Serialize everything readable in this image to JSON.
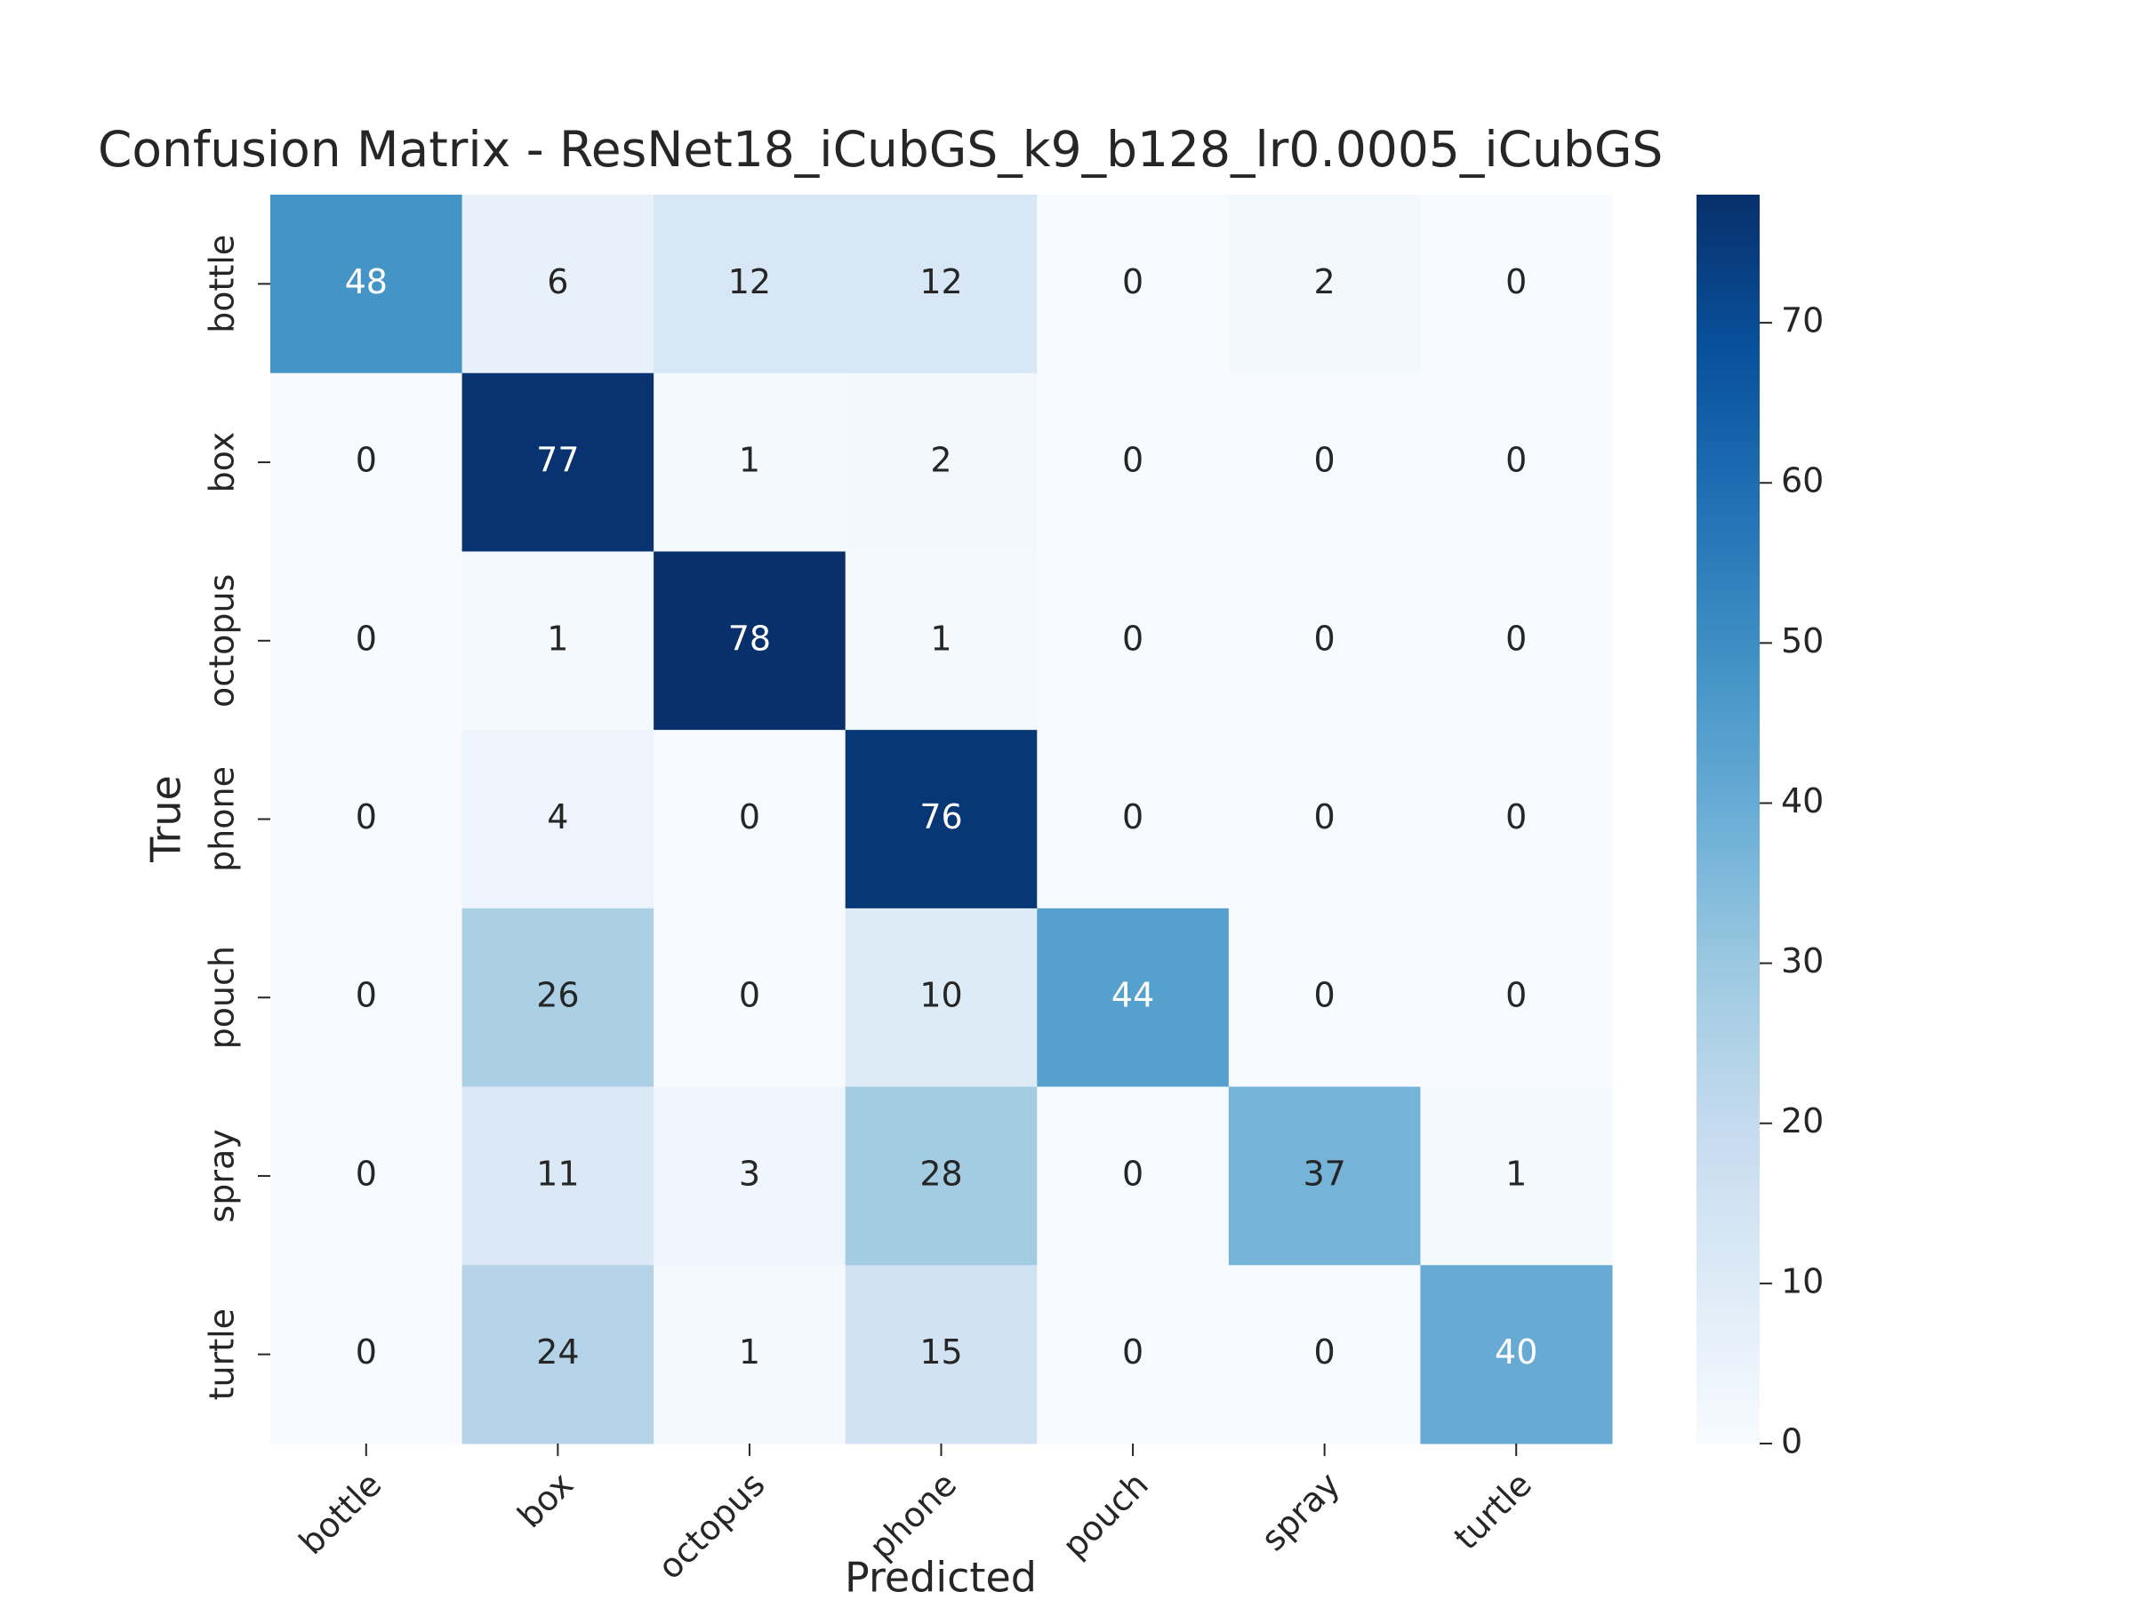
{
  "chart_data": {
    "type": "heatmap",
    "title": "Confusion Matrix - ResNet18_iCubGS_k9_b128_lr0.0005_iCubGS",
    "x_label": "Predicted",
    "y_label": "True",
    "x_categories": [
      "bottle",
      "box",
      "octopus",
      "phone",
      "pouch",
      "spray",
      "turtle"
    ],
    "y_categories": [
      "bottle",
      "box",
      "octopus",
      "phone",
      "pouch",
      "spray",
      "turtle"
    ],
    "values": [
      [
        48,
        6,
        12,
        12,
        0,
        2,
        0
      ],
      [
        0,
        77,
        1,
        2,
        0,
        0,
        0
      ],
      [
        0,
        1,
        78,
        1,
        0,
        0,
        0
      ],
      [
        0,
        4,
        0,
        76,
        0,
        0,
        0
      ],
      [
        0,
        26,
        0,
        10,
        44,
        0,
        0
      ],
      [
        0,
        11,
        3,
        28,
        0,
        37,
        1
      ],
      [
        0,
        24,
        1,
        15,
        0,
        0,
        40
      ]
    ],
    "cmap": "Blues",
    "clim": [
      0,
      78
    ],
    "cticks": [
      0,
      10,
      20,
      30,
      40,
      50,
      60,
      70
    ]
  }
}
